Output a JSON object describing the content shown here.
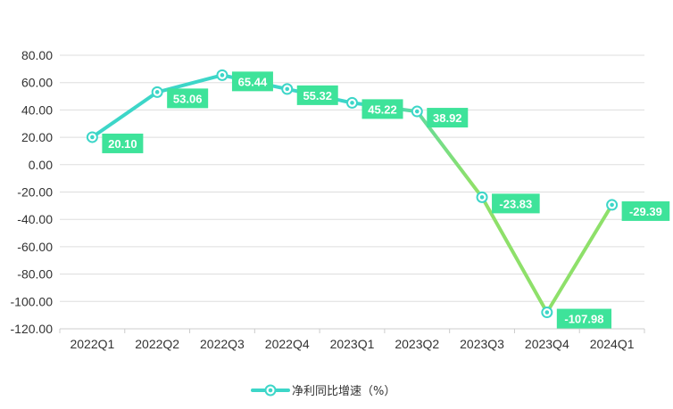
{
  "chart_data": {
    "type": "line",
    "categories": [
      "2022Q1",
      "2022Q2",
      "2022Q3",
      "2022Q4",
      "2023Q1",
      "2023Q2",
      "2023Q3",
      "2023Q4",
      "2024Q1"
    ],
    "series": [
      {
        "name": "净利同比增速（%）",
        "values": [
          20.1,
          53.06,
          65.44,
          55.32,
          45.22,
          38.92,
          -23.83,
          -107.98,
          -29.39
        ],
        "labels": [
          "20.10",
          "53.06",
          "65.44",
          "55.32",
          "45.22",
          "38.92",
          "-23.83",
          "-107.98",
          "-29.39"
        ]
      }
    ],
    "yticks": [
      "80.00",
      "60.00",
      "40.00",
      "20.00",
      "0.00",
      "-20.00",
      "-40.00",
      "-60.00",
      "-80.00",
      "-100.00",
      "-120.00"
    ],
    "ylim": [
      -120,
      80
    ],
    "grid": true,
    "legend_position": "bottom-center",
    "colors": {
      "line_start": "#3dd6c8",
      "line_end": "#8ee06a",
      "label_bg": "#3ee39a",
      "marker_stroke": "#3dd6c8",
      "grid": "#dddddd",
      "axis": "#cccccc"
    }
  }
}
